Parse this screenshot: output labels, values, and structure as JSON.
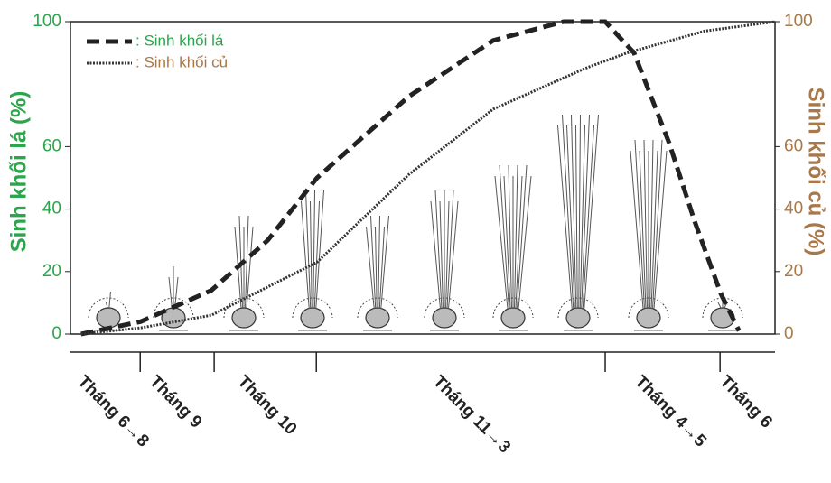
{
  "chart_data": {
    "type": "line",
    "y_label": "Sinh khối lá (%)",
    "y2_label": "Sinh khối củ (%)",
    "y_color": "#2aa64b",
    "y2_color": "#a8784a",
    "categories": [
      "Tháng 6→8",
      "Tháng 9",
      "Tháng 10",
      "Tháng 11→3",
      "Tháng 4→5",
      "Tháng 6"
    ],
    "xlim": [
      0,
      100
    ],
    "xticks": [
      0,
      9.9,
      20.4,
      34.9,
      75.9,
      92.2,
      100
    ],
    "ylim": [
      0,
      100
    ],
    "yticks": [
      0,
      20,
      40,
      60,
      100
    ],
    "y2lim": [
      0,
      100
    ],
    "y2ticks": [
      0,
      20,
      40,
      60,
      100
    ],
    "legend": "upper left",
    "series": [
      {
        "name": ": Sinh khối lá",
        "color": "#222222",
        "style": "dashed",
        "x": [
          1.5,
          10,
          20,
          28,
          35,
          48,
          60,
          70,
          75.9,
          80,
          85,
          88.6,
          92.3,
          94.9
        ],
        "values": [
          0,
          4,
          14,
          30,
          50,
          76,
          94,
          100,
          100,
          90,
          61,
          36,
          13,
          1
        ]
      },
      {
        "name": ": Sinh khối củ",
        "color": "#333333",
        "style": "dotted",
        "axis": "y2",
        "x": [
          1.5,
          10,
          20,
          35,
          48,
          60,
          73,
          79,
          90,
          100
        ],
        "values": [
          0,
          2,
          6,
          23,
          51,
          72,
          85,
          90,
          97,
          100
        ]
      }
    ]
  }
}
